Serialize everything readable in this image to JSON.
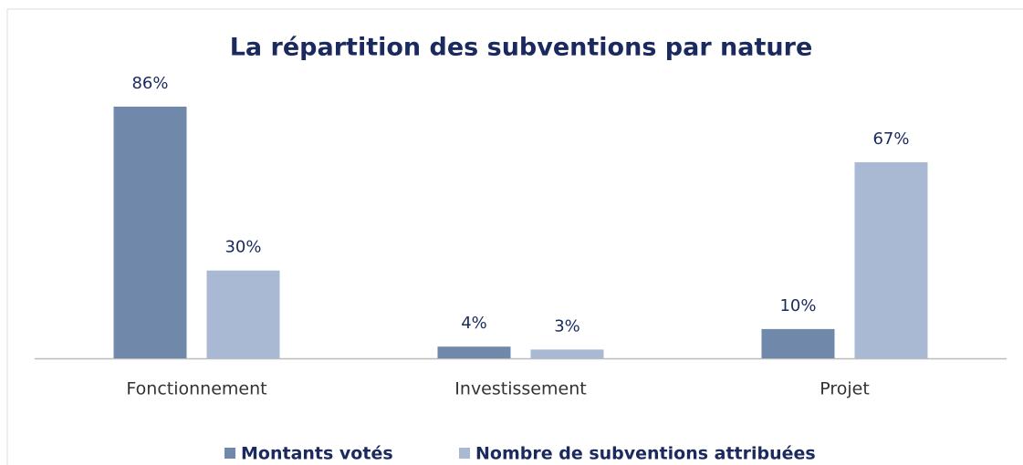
{
  "chart_data": {
    "type": "bar",
    "title": "La répartition des subventions par nature",
    "categories": [
      "Fonctionnement",
      "Investissement",
      "Projet"
    ],
    "series": [
      {
        "name": "Montants votés",
        "color": "#7089ab",
        "values": [
          86,
          4,
          10
        ],
        "value_labels": [
          "86%",
          "4%",
          "10%"
        ]
      },
      {
        "name": "Nombre de subventions attribuées",
        "color": "#a9b9d3",
        "values": [
          30,
          3,
          67
        ],
        "value_labels": [
          "30%",
          "3%",
          "67%"
        ]
      }
    ]
  }
}
